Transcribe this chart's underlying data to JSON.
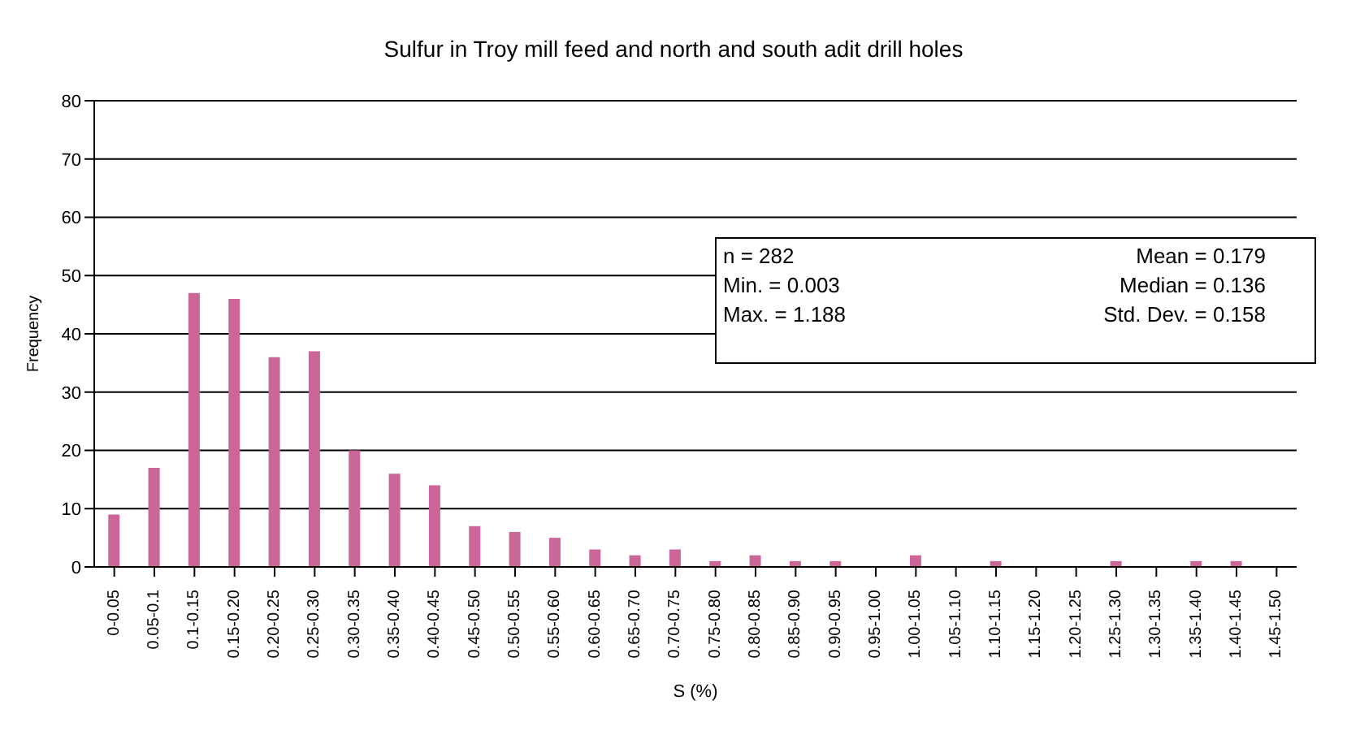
{
  "chart_data": {
    "type": "bar",
    "title": "Sulfur in Troy mill feed and north and south adit drill holes",
    "xlabel": "S (%)",
    "ylabel": "Frequency",
    "categories": [
      "0-0.05",
      "0.05-0.1",
      "0.1-0.15",
      "0.15-0.20",
      "0.20-0.25",
      "0.25-0.30",
      "0.30-0.35",
      "0.35-0.40",
      "0.40-0.45",
      "0.45-0.50",
      "0.50-0.55",
      "0.55-0.60",
      "0.60-0.65",
      "0.65-0.70",
      "0.70-0.75",
      "0.75-0.80",
      "0.80-0.85",
      "0.85-0.90",
      "0.90-0.95",
      "0.95-1.00",
      "1.00-1.05",
      "1.05-1.10",
      "1.10-1.15",
      "1.15-1.20",
      "1.20-1.25",
      "1.25-1.30",
      "1.30-1.35",
      "1.35-1.40",
      "1.40-1.45",
      "1.45-1.50"
    ],
    "values": [
      9,
      17,
      47,
      46,
      36,
      37,
      20,
      16,
      14,
      7,
      6,
      5,
      3,
      2,
      3,
      1,
      2,
      1,
      1,
      0,
      2,
      0,
      1,
      0,
      0,
      1,
      0,
      1,
      1,
      0
    ],
    "color": "#cc6699",
    "ylim": [
      0,
      80
    ],
    "yticks": [
      0,
      10,
      20,
      30,
      40,
      50,
      60,
      70,
      80
    ],
    "grid": "y",
    "annotations": [
      "n = 282",
      "Mean = 0.179",
      "Min. = 0.003",
      "Median = 0.136",
      "Max. = 1.188",
      "Std. Dev. = 0.158"
    ]
  }
}
